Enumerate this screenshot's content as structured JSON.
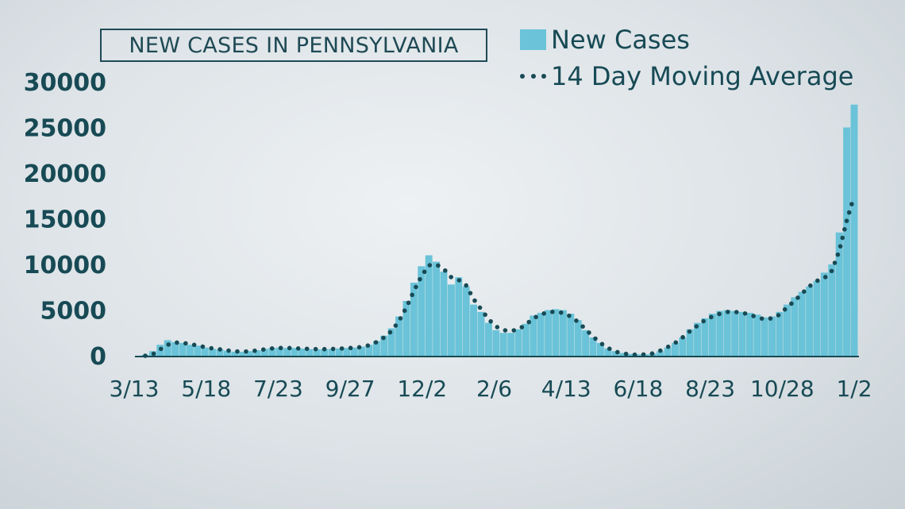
{
  "chart_data": {
    "type": "bar",
    "title": "NEW CASES IN PENNSYLVANIA",
    "xlabel": "",
    "ylabel": "",
    "ylim": [
      0,
      30000
    ],
    "y_ticks": [
      "0",
      "5000",
      "10000",
      "15000",
      "20000",
      "25000",
      "30000"
    ],
    "x_tick_labels": [
      "3/13",
      "5/18",
      "7/23",
      "9/27",
      "12/2",
      "2/6",
      "4/13",
      "6/18",
      "8/23",
      "10/28",
      "1/2"
    ],
    "legend": {
      "position": "top-right"
    },
    "grid": false,
    "series": [
      {
        "name": "New Cases",
        "kind": "bar",
        "color": "#6ac3d8",
        "x": [
          "3/13",
          "3/20",
          "3/27",
          "4/3",
          "4/10",
          "4/17",
          "4/24",
          "5/1",
          "5/8",
          "5/15",
          "5/22",
          "5/29",
          "6/5",
          "6/12",
          "6/19",
          "6/26",
          "7/3",
          "7/10",
          "7/17",
          "7/24",
          "7/31",
          "8/7",
          "8/14",
          "8/21",
          "8/28",
          "9/4",
          "9/11",
          "9/18",
          "9/25",
          "10/2",
          "10/9",
          "10/16",
          "10/23",
          "10/30",
          "11/6",
          "11/13",
          "11/20",
          "11/27",
          "12/4",
          "12/11",
          "12/18",
          "12/25",
          "1/1",
          "1/8",
          "1/15",
          "1/22",
          "1/29",
          "2/5",
          "2/12",
          "2/19",
          "2/26",
          "3/5",
          "3/12",
          "3/19",
          "3/26",
          "4/2",
          "4/9",
          "4/16",
          "4/23",
          "4/30",
          "5/7",
          "5/14",
          "5/21",
          "5/28",
          "6/4",
          "6/11",
          "6/18",
          "6/25",
          "7/2",
          "7/9",
          "7/16",
          "7/23",
          "7/30",
          "8/6",
          "8/13",
          "8/20",
          "8/27",
          "9/3",
          "9/10",
          "9/17",
          "9/24",
          "10/1",
          "10/8",
          "10/15",
          "10/22",
          "10/29",
          "11/5",
          "11/12",
          "11/19",
          "11/26",
          "12/3",
          "12/10",
          "12/17",
          "12/24",
          "12/31",
          "1/2"
        ],
        "values": [
          100,
          500,
          1200,
          1700,
          1500,
          1400,
          1200,
          1100,
          900,
          750,
          700,
          550,
          450,
          430,
          500,
          600,
          750,
          850,
          900,
          850,
          850,
          780,
          720,
          700,
          720,
          750,
          800,
          850,
          900,
          1000,
          1200,
          1600,
          2200,
          3000,
          4300,
          6000,
          8000,
          9800,
          11000,
          10300,
          9200,
          7800,
          8600,
          7600,
          5600,
          4800,
          3600,
          2800,
          2500,
          2500,
          2900,
          3500,
          4400,
          4700,
          5000,
          5100,
          5000,
          4600,
          3900,
          2800,
          2000,
          1400,
          800,
          500,
          300,
          200,
          150,
          150,
          250,
          500,
          900,
          1400,
          2000,
          2900,
          3600,
          4100,
          4600,
          4900,
          5000,
          4900,
          4800,
          4700,
          4500,
          4200,
          4300,
          4800,
          5600,
          6400,
          7000,
          7600,
          8200,
          9100,
          10000,
          13500,
          25000,
          27500
        ]
      },
      {
        "name": "14 Day Moving Average",
        "kind": "dotted-line",
        "color": "#174a55",
        "x": [
          "3/13",
          "3/20",
          "3/27",
          "4/3",
          "4/10",
          "4/17",
          "4/24",
          "5/1",
          "5/8",
          "5/15",
          "5/22",
          "5/29",
          "6/5",
          "6/12",
          "6/19",
          "6/26",
          "7/3",
          "7/10",
          "7/17",
          "7/24",
          "7/31",
          "8/7",
          "8/14",
          "8/21",
          "8/28",
          "9/4",
          "9/11",
          "9/18",
          "9/25",
          "10/2",
          "10/9",
          "10/16",
          "10/23",
          "10/30",
          "11/6",
          "11/13",
          "11/20",
          "11/27",
          "12/4",
          "12/11",
          "12/18",
          "12/25",
          "1/1",
          "1/8",
          "1/15",
          "1/22",
          "1/29",
          "2/5",
          "2/12",
          "2/19",
          "2/26",
          "3/5",
          "3/12",
          "3/19",
          "3/26",
          "4/2",
          "4/9",
          "4/16",
          "4/23",
          "4/30",
          "5/7",
          "5/14",
          "5/21",
          "5/28",
          "6/4",
          "6/11",
          "6/18",
          "6/25",
          "7/2",
          "7/9",
          "7/16",
          "7/23",
          "7/30",
          "8/6",
          "8/13",
          "8/20",
          "8/27",
          "9/3",
          "9/10",
          "9/17",
          "9/24",
          "10/1",
          "10/8",
          "10/15",
          "10/22",
          "10/29",
          "11/5",
          "11/12",
          "11/19",
          "11/26",
          "12/3",
          "12/10",
          "12/17",
          "12/24",
          "12/31",
          "1/2"
        ],
        "values": [
          0,
          150,
          700,
          1200,
          1450,
          1400,
          1300,
          1100,
          950,
          800,
          700,
          580,
          480,
          450,
          480,
          580,
          700,
          800,
          850,
          850,
          820,
          780,
          750,
          720,
          720,
          740,
          780,
          820,
          880,
          950,
          1150,
          1500,
          2000,
          2700,
          3800,
          5300,
          7100,
          8700,
          9900,
          10000,
          9500,
          8600,
          8300,
          7700,
          6200,
          5100,
          4000,
          3200,
          2800,
          2700,
          2900,
          3400,
          4100,
          4500,
          4800,
          4800,
          4700,
          4300,
          3700,
          2900,
          2100,
          1400,
          850,
          450,
          250,
          150,
          100,
          150,
          250,
          550,
          950,
          1400,
          2000,
          2700,
          3300,
          3900,
          4300,
          4600,
          4800,
          4800,
          4700,
          4500,
          4200,
          4000,
          4100,
          4500,
          5300,
          6000,
          6800,
          7600,
          8200,
          8500,
          9300,
          11500,
          14800,
          17500
        ]
      }
    ]
  },
  "colors": {
    "bar": "#6ac3d8",
    "average": "#174a55",
    "text": "#174a55",
    "background": "#e4e9ec"
  }
}
